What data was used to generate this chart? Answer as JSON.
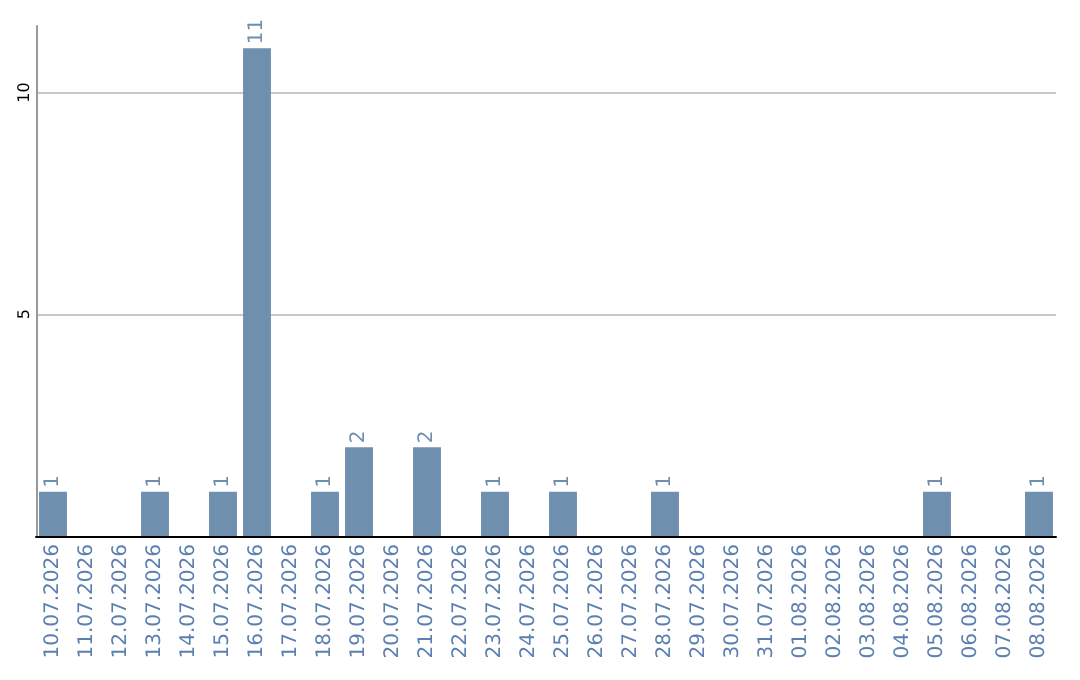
{
  "chart_data": {
    "type": "bar",
    "categories": [
      "10.07.2026",
      "11.07.2026",
      "12.07.2026",
      "13.07.2026",
      "14.07.2026",
      "15.07.2026",
      "16.07.2026",
      "17.07.2026",
      "18.07.2026",
      "19.07.2026",
      "20.07.2026",
      "21.07.2026",
      "22.07.2026",
      "23.07.2026",
      "24.07.2026",
      "25.07.2026",
      "26.07.2026",
      "27.07.2026",
      "28.07.2026",
      "29.07.2026",
      "30.07.2026",
      "31.07.2026",
      "01.08.2026",
      "02.08.2026",
      "03.08.2026",
      "04.08.2026",
      "05.08.2026",
      "06.08.2026",
      "07.08.2026",
      "08.08.2026"
    ],
    "values": [
      1,
      0,
      0,
      1,
      0,
      1,
      11,
      0,
      1,
      2,
      0,
      2,
      0,
      1,
      0,
      1,
      0,
      0,
      1,
      0,
      0,
      0,
      0,
      0,
      0,
      0,
      1,
      0,
      0,
      1
    ],
    "value_labels": [
      "1",
      null,
      null,
      "1",
      null,
      "1",
      "11",
      null,
      "1",
      "2",
      null,
      "2",
      null,
      "1",
      null,
      "1",
      null,
      null,
      "1",
      null,
      null,
      null,
      null,
      null,
      null,
      null,
      "1",
      null,
      null,
      "1"
    ],
    "color": "#6f8fae",
    "ylim": [
      0,
      11.5
    ],
    "yticks": [
      5,
      10
    ],
    "grid": "y"
  }
}
